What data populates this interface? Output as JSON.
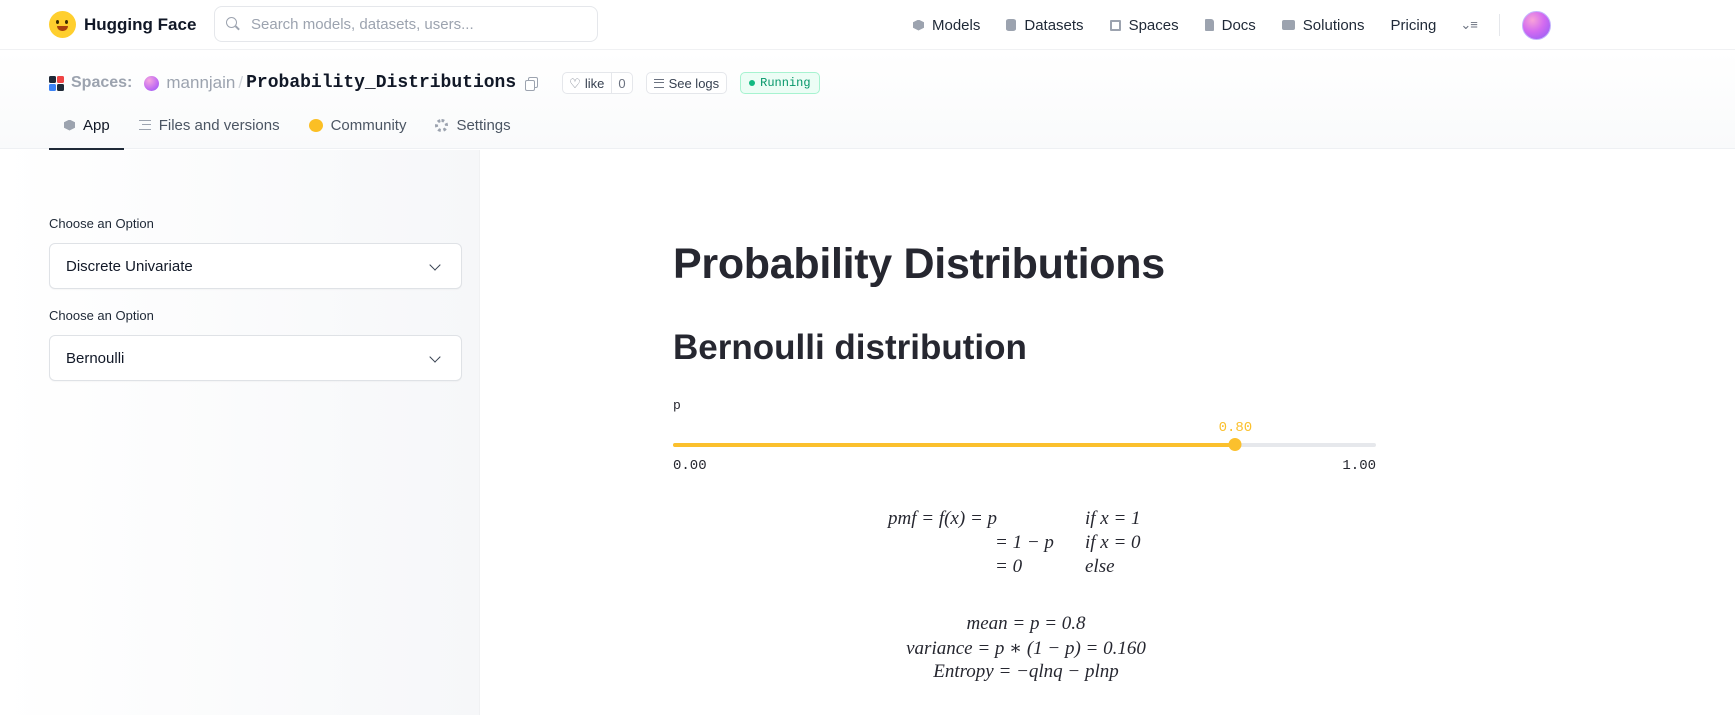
{
  "brand": {
    "name": "Hugging Face"
  },
  "search": {
    "placeholder": "Search models, datasets, users..."
  },
  "nav": {
    "models": "Models",
    "datasets": "Datasets",
    "spaces": "Spaces",
    "docs": "Docs",
    "solutions": "Solutions",
    "pricing": "Pricing"
  },
  "space": {
    "section_label": "Spaces:",
    "owner": "mannjain",
    "separator": "/",
    "repo": "Probability_Distributions",
    "like_label": "like",
    "like_count": "0",
    "logs_label": "See logs",
    "status": "Running",
    "status_color": "#10b981"
  },
  "tabs": [
    {
      "label": "App",
      "icon": "cube-icon",
      "active": true
    },
    {
      "label": "Files and versions",
      "icon": "files-icon",
      "active": false
    },
    {
      "label": "Community",
      "icon": "community-icon",
      "active": false
    },
    {
      "label": "Settings",
      "icon": "gear-icon",
      "active": false
    }
  ],
  "sidebar": {
    "select1_label": "Choose an Option",
    "select1_value": "Discrete Univariate",
    "select2_label": "Choose an Option",
    "select2_value": "Bernoulli"
  },
  "main": {
    "title": "Probability Distributions",
    "subtitle": "Bernoulli distribution",
    "slider": {
      "label": "p",
      "value": "0.80",
      "value_fraction": 0.8,
      "min": "0.00",
      "max": "1.00",
      "accent": "#fbc02d"
    },
    "pmf": [
      [
        "pmf = f(x) = p",
        "if x = 1"
      ],
      [
        "= 1 − p",
        "if x = 0"
      ],
      [
        "= 0",
        "else"
      ]
    ],
    "stats": [
      "mean = p = 0.8",
      "variance = p ∗ (1 − p) = 0.160",
      "Entropy = −qlnq − plnp"
    ]
  }
}
